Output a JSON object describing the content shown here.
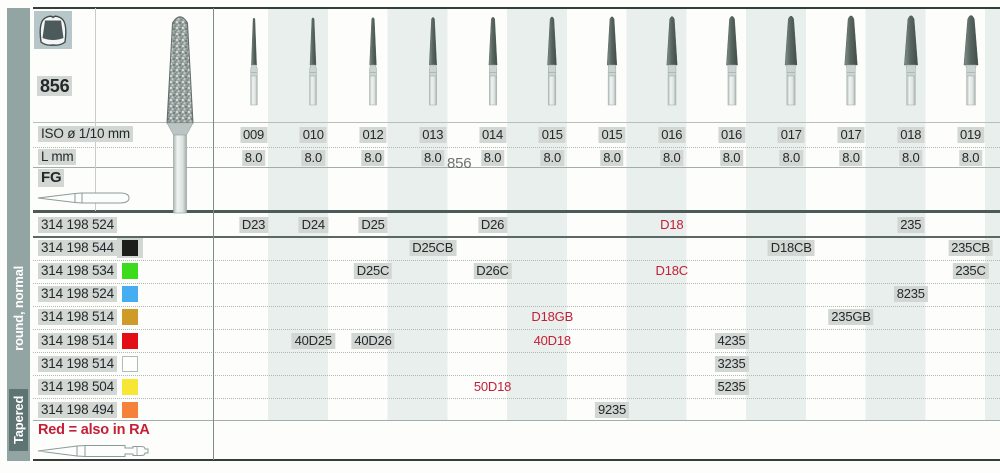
{
  "sidebar": {
    "label_bottom": "Tapered",
    "label_top": "round, normal"
  },
  "header": {
    "figure_number": "856",
    "iso_row_label": "ISO ø 1/10 mm",
    "length_row_label": "L mm",
    "shank_type": "FG",
    "ghost_watermark": "856",
    "tooth_icon": "crown-prep-icon"
  },
  "columns": [
    "009",
    "010",
    "012",
    "013",
    "014",
    "015",
    "015",
    "016",
    "016",
    "017",
    "017",
    "018",
    "019"
  ],
  "l_values": [
    "8.0",
    "8.0",
    "8.0",
    "8.0",
    "8.0",
    "8.0",
    "8.0",
    "8.0",
    "8.0",
    "8.0",
    "8.0",
    "8.0",
    "8.0"
  ],
  "rows": [
    {
      "code": "314 198 524",
      "chip": null,
      "cells": [
        {
          "col": 0,
          "label": "D23"
        },
        {
          "col": 1,
          "label": "D24"
        },
        {
          "col": 2,
          "label": "D25"
        },
        {
          "col": 4,
          "label": "D26"
        },
        {
          "col": 7,
          "label": "D18",
          "red": true
        },
        {
          "col": 11,
          "label": "235"
        }
      ]
    },
    {
      "code": "314 198 544",
      "chip": "black",
      "cells": [
        {
          "col": 3,
          "label": "D25CB"
        },
        {
          "col": 9,
          "label": "D18CB"
        },
        {
          "col": 12,
          "label": "235CB"
        }
      ]
    },
    {
      "code": "314 198 534",
      "chip": "green",
      "cells": [
        {
          "col": 2,
          "label": "D25C"
        },
        {
          "col": 4,
          "label": "D26C"
        },
        {
          "col": 7,
          "label": "D18C",
          "red": true
        },
        {
          "col": 12,
          "label": "235C"
        }
      ]
    },
    {
      "code": "314 198 524",
      "chip": "blue",
      "cells": [
        {
          "col": 11,
          "label": "8235"
        }
      ]
    },
    {
      "code": "314 198 514",
      "chip": "ochre",
      "cells": [
        {
          "col": 5,
          "label": "D18GB",
          "red": true
        },
        {
          "col": 10,
          "label": "235GB"
        }
      ]
    },
    {
      "code": "314 198 514",
      "chip": "red",
      "cells": [
        {
          "col": 1,
          "label": "40D25"
        },
        {
          "col": 2,
          "label": "40D26"
        },
        {
          "col": 5,
          "label": "40D18",
          "red": true
        },
        {
          "col": 8,
          "label": "4235"
        }
      ]
    },
    {
      "code": "314 198 514",
      "chip": "white",
      "cells": [
        {
          "col": 8,
          "label": "3235"
        }
      ]
    },
    {
      "code": "314 198 504",
      "chip": "yellow",
      "cells": [
        {
          "col": 4,
          "label": "50D18",
          "red": true
        },
        {
          "col": 8,
          "label": "5235"
        }
      ]
    },
    {
      "code": "314 198 494",
      "chip": "orange",
      "cells": [
        {
          "col": 6,
          "label": "9235"
        }
      ]
    }
  ],
  "chips": {
    "black": "#1d1d1b",
    "green": "#3cdb1c",
    "blue": "#45aef2",
    "ochre": "#cf9b28",
    "red": "#e30d18",
    "white": "#ffffff",
    "yellow": "#f8e636",
    "orange": "#f5823a"
  },
  "footer": {
    "note": "Red = also in RA"
  },
  "colors": {
    "sidebar_bg": "#93a5a2",
    "sidebar_highlight": "#5e7472",
    "stripe": "#e9efec",
    "highlight_box": "#d3d7d4",
    "text": "#23282b",
    "red_text": "#c32038",
    "line_dark": "#4c5b58",
    "line_mid": "#8a9996",
    "bur_head": "#59655f",
    "bur_shank": "#e9edec"
  }
}
